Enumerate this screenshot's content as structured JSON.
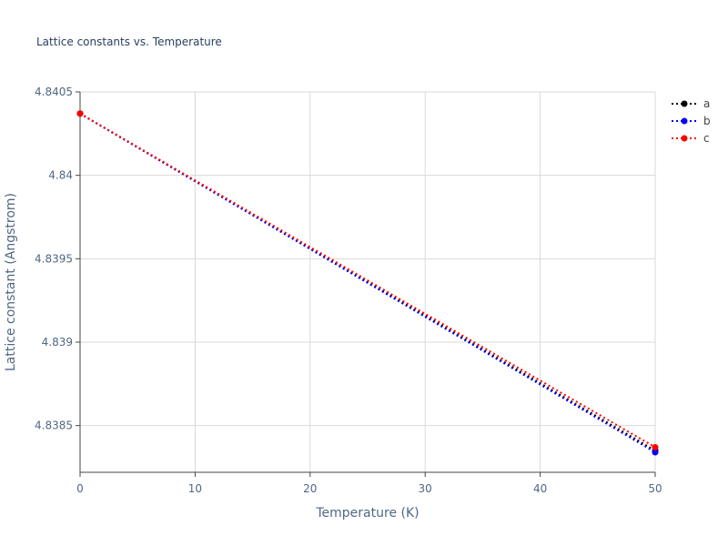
{
  "chart_data": {
    "type": "line",
    "title": "Lattice constants vs. Temperature",
    "x_label": "Temperature (K)",
    "y_label": "Lattice constant (Angstrom)",
    "x": [
      0,
      50
    ],
    "series": [
      {
        "name": "a",
        "color": "#000000",
        "values": [
          4.84037,
          4.83835
        ]
      },
      {
        "name": "b",
        "color": "#0000ff",
        "values": [
          4.84037,
          4.83834
        ]
      },
      {
        "name": "c",
        "color": "#ff0000",
        "values": [
          4.84037,
          4.83837
        ]
      }
    ],
    "xlim": [
      0,
      50
    ],
    "xticks": [
      0,
      10,
      20,
      30,
      40,
      50
    ],
    "ylim": [
      4.83822,
      4.8405
    ],
    "yticks": [
      4.8385,
      4.839,
      4.8395,
      4.84,
      4.8405
    ],
    "grid": true,
    "legend": "right"
  }
}
